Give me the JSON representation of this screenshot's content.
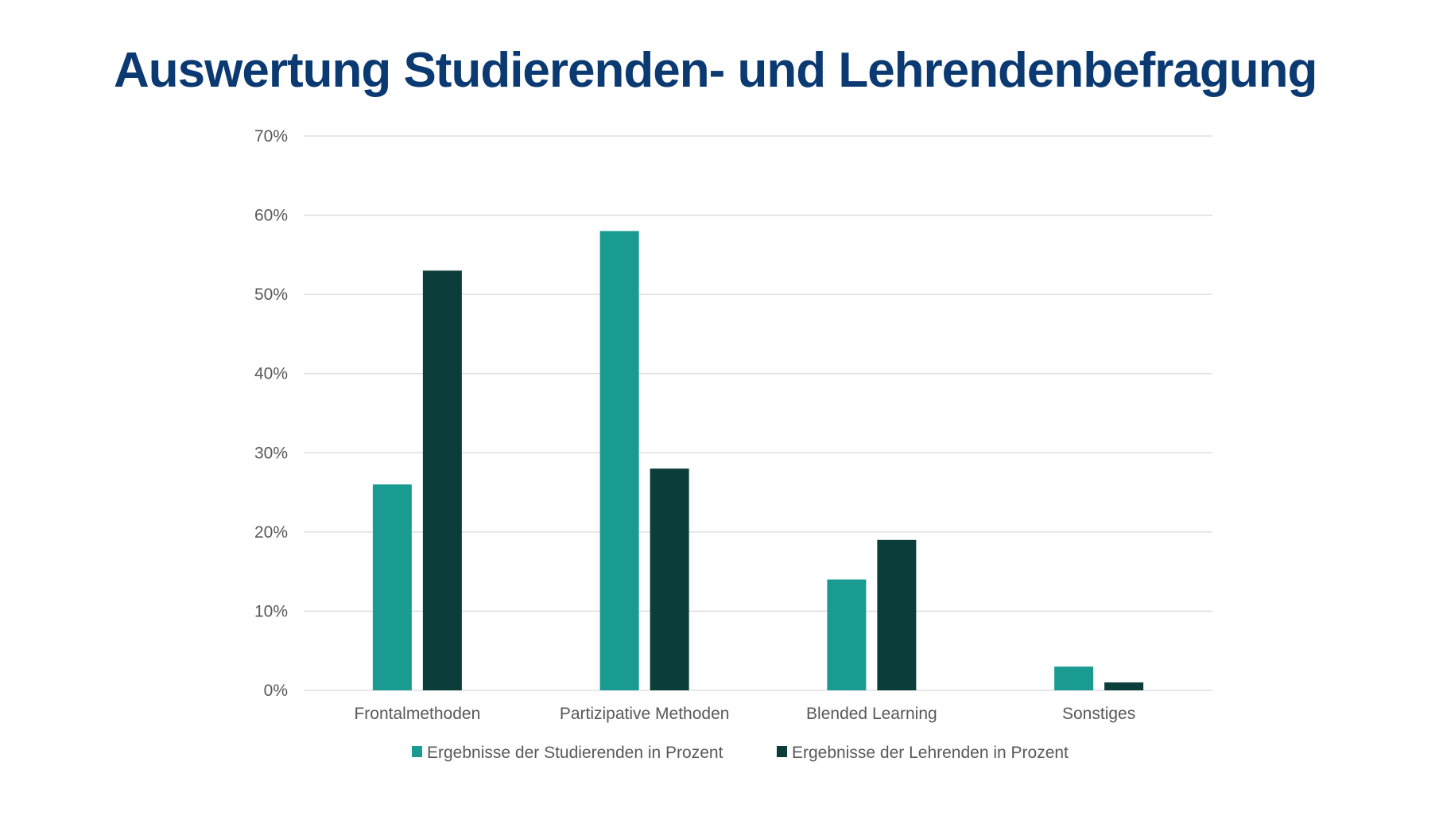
{
  "chart_data": {
    "type": "bar",
    "title": "Auswertung Studierenden- und Lehrendenbefragung",
    "xlabel": "",
    "ylabel": "",
    "ylim": [
      0,
      70
    ],
    "yticks": [
      0,
      10,
      20,
      30,
      40,
      50,
      60,
      70
    ],
    "ytick_labels": [
      "0%",
      "10%",
      "20%",
      "30%",
      "40%",
      "50%",
      "60%",
      "70%"
    ],
    "grid": true,
    "legend_position": "bottom",
    "categories": [
      "Frontalmethoden",
      "Partizipative Methoden",
      "Blended Learning",
      "Sonstiges"
    ],
    "series": [
      {
        "name": "Ergebnisse der Studierenden in Prozent",
        "color": "#1a9b92",
        "values": [
          26,
          58,
          14,
          3
        ]
      },
      {
        "name": "Ergebnisse der Lehrenden in Prozent",
        "color": "#0b3d3a",
        "values": [
          53,
          28,
          19,
          1
        ]
      }
    ]
  }
}
